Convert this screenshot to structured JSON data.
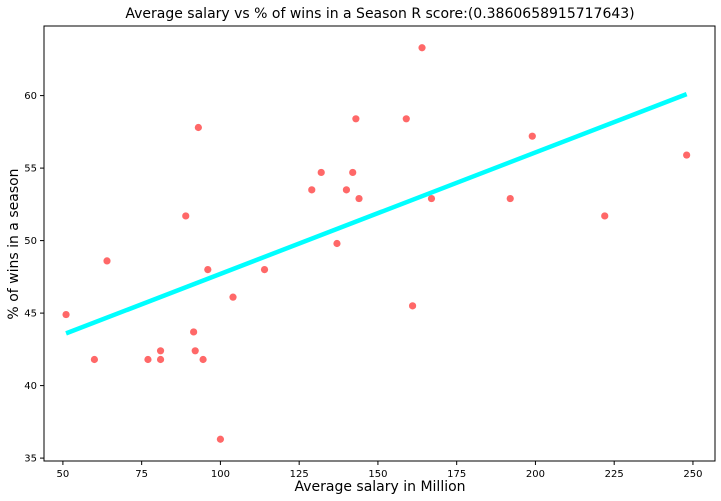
{
  "chart_data": {
    "type": "scatter",
    "title": "Average salary vs % of wins in a Season  R score:(0.3860658915717643)",
    "xlabel": "Average salary in Million",
    "ylabel": "% of wins in a season",
    "xlim": [
      44,
      257
    ],
    "ylim": [
      34.8,
      64.8
    ],
    "xticks": [
      50,
      75,
      100,
      125,
      150,
      175,
      200,
      225,
      250
    ],
    "yticks": [
      35,
      40,
      45,
      50,
      55,
      60
    ],
    "grid": false,
    "point_color": "#ff4d4d",
    "line_color": "#00ffff",
    "points": [
      {
        "x": 51,
        "y": 44.9
      },
      {
        "x": 60,
        "y": 41.8
      },
      {
        "x": 64,
        "y": 48.6
      },
      {
        "x": 77,
        "y": 41.8
      },
      {
        "x": 81,
        "y": 42.4
      },
      {
        "x": 81,
        "y": 41.8
      },
      {
        "x": 89,
        "y": 51.7
      },
      {
        "x": 91.5,
        "y": 43.7
      },
      {
        "x": 92,
        "y": 42.4
      },
      {
        "x": 93,
        "y": 57.8
      },
      {
        "x": 94.5,
        "y": 41.8
      },
      {
        "x": 96,
        "y": 48.0
      },
      {
        "x": 100,
        "y": 36.3
      },
      {
        "x": 104,
        "y": 46.1
      },
      {
        "x": 114,
        "y": 48.0
      },
      {
        "x": 129,
        "y": 53.5
      },
      {
        "x": 132,
        "y": 54.7
      },
      {
        "x": 137,
        "y": 49.8
      },
      {
        "x": 140,
        "y": 53.5
      },
      {
        "x": 142,
        "y": 54.7
      },
      {
        "x": 143,
        "y": 58.4
      },
      {
        "x": 144,
        "y": 52.9
      },
      {
        "x": 159,
        "y": 58.4
      },
      {
        "x": 161,
        "y": 45.5
      },
      {
        "x": 164,
        "y": 63.3
      },
      {
        "x": 167,
        "y": 52.9
      },
      {
        "x": 192,
        "y": 52.9
      },
      {
        "x": 199,
        "y": 57.2
      },
      {
        "x": 222,
        "y": 51.7
      },
      {
        "x": 248,
        "y": 55.9
      }
    ],
    "regression_line": {
      "x": [
        51,
        248
      ],
      "y": [
        43.6,
        60.1
      ]
    }
  }
}
